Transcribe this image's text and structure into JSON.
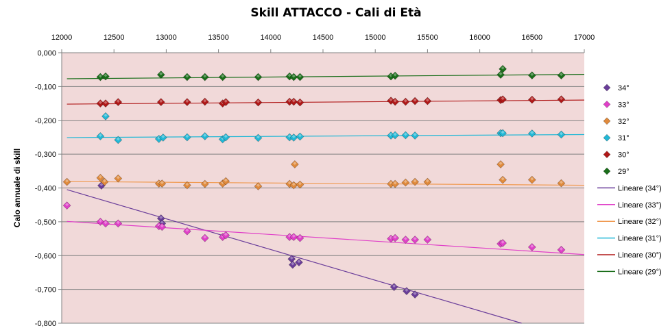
{
  "chart_data": {
    "type": "scatter",
    "title": "Skill ATTACCO - Cali di Età",
    "xlabel": "",
    "ylabel": "Calo annuale di skill",
    "x_axis_position": "top",
    "xlim": [
      12000,
      17000
    ],
    "ylim": [
      -0.8,
      0.0
    ],
    "x_ticks": [
      "12000",
      "12500",
      "13000",
      "13500",
      "14000",
      "14500",
      "15000",
      "15500",
      "16000",
      "16500",
      "17000"
    ],
    "y_ticks": [
      "0,000",
      "-0,100",
      "-0,200",
      "-0,300",
      "-0,400",
      "-0,500",
      "-0,600",
      "-0,700",
      "-0,800"
    ],
    "grid": "horizontal",
    "legend_position": "right",
    "plot_background": "#f1d9d9",
    "series": [
      {
        "name": "34°",
        "color": "#6a3d9a",
        "marker": "diamond",
        "points": [
          [
            12380,
            -0.393
          ],
          [
            12950,
            -0.49
          ],
          [
            12960,
            -0.505
          ],
          [
            14200,
            -0.61
          ],
          [
            14210,
            -0.627
          ],
          [
            14270,
            -0.62
          ],
          [
            15180,
            -0.693
          ],
          [
            15300,
            -0.705
          ],
          [
            15380,
            -0.715
          ]
        ]
      },
      {
        "name": "33°",
        "color": "#e040c8",
        "marker": "diamond",
        "points": [
          [
            12050,
            -0.452
          ],
          [
            12370,
            -0.5
          ],
          [
            12420,
            -0.505
          ],
          [
            12540,
            -0.505
          ],
          [
            12930,
            -0.513
          ],
          [
            12960,
            -0.515
          ],
          [
            13200,
            -0.528
          ],
          [
            13370,
            -0.548
          ],
          [
            13540,
            -0.545
          ],
          [
            13570,
            -0.54
          ],
          [
            14180,
            -0.545
          ],
          [
            14220,
            -0.545
          ],
          [
            14280,
            -0.548
          ],
          [
            15150,
            -0.55
          ],
          [
            15190,
            -0.548
          ],
          [
            15290,
            -0.553
          ],
          [
            15380,
            -0.553
          ],
          [
            15500,
            -0.553
          ],
          [
            16200,
            -0.565
          ],
          [
            16220,
            -0.563
          ],
          [
            16500,
            -0.575
          ],
          [
            16780,
            -0.583
          ]
        ]
      },
      {
        "name": "32°",
        "color": "#e08a3c",
        "marker": "diamond",
        "points": [
          [
            12050,
            -0.382
          ],
          [
            12370,
            -0.37
          ],
          [
            12410,
            -0.382
          ],
          [
            12540,
            -0.372
          ],
          [
            12930,
            -0.387
          ],
          [
            12960,
            -0.387
          ],
          [
            13200,
            -0.392
          ],
          [
            13370,
            -0.388
          ],
          [
            13540,
            -0.387
          ],
          [
            13570,
            -0.38
          ],
          [
            13880,
            -0.395
          ],
          [
            14180,
            -0.388
          ],
          [
            14220,
            -0.392
          ],
          [
            14230,
            -0.33
          ],
          [
            14280,
            -0.39
          ],
          [
            15150,
            -0.388
          ],
          [
            15190,
            -0.388
          ],
          [
            15290,
            -0.384
          ],
          [
            15380,
            -0.382
          ],
          [
            15500,
            -0.382
          ],
          [
            16200,
            -0.33
          ],
          [
            16220,
            -0.376
          ],
          [
            16500,
            -0.376
          ],
          [
            16780,
            -0.386
          ]
        ]
      },
      {
        "name": "31°",
        "color": "#22b8d6",
        "marker": "diamond",
        "points": [
          [
            12370,
            -0.247
          ],
          [
            12420,
            -0.188
          ],
          [
            12540,
            -0.258
          ],
          [
            12930,
            -0.255
          ],
          [
            12970,
            -0.251
          ],
          [
            13200,
            -0.25
          ],
          [
            13370,
            -0.247
          ],
          [
            13540,
            -0.256
          ],
          [
            13570,
            -0.25
          ],
          [
            13880,
            -0.252
          ],
          [
            14180,
            -0.25
          ],
          [
            14220,
            -0.251
          ],
          [
            14280,
            -0.248
          ],
          [
            15150,
            -0.245
          ],
          [
            15190,
            -0.244
          ],
          [
            15290,
            -0.244
          ],
          [
            15380,
            -0.245
          ],
          [
            16200,
            -0.238
          ],
          [
            16220,
            -0.238
          ],
          [
            16500,
            -0.239
          ],
          [
            16780,
            -0.242
          ]
        ]
      },
      {
        "name": "30°",
        "color": "#b01818",
        "marker": "diamond",
        "points": [
          [
            12370,
            -0.15
          ],
          [
            12420,
            -0.15
          ],
          [
            12540,
            -0.146
          ],
          [
            12950,
            -0.146
          ],
          [
            13200,
            -0.146
          ],
          [
            13370,
            -0.145
          ],
          [
            13540,
            -0.15
          ],
          [
            13570,
            -0.146
          ],
          [
            13880,
            -0.147
          ],
          [
            14180,
            -0.145
          ],
          [
            14220,
            -0.145
          ],
          [
            14280,
            -0.147
          ],
          [
            15150,
            -0.142
          ],
          [
            15190,
            -0.145
          ],
          [
            15290,
            -0.145
          ],
          [
            15380,
            -0.143
          ],
          [
            15500,
            -0.143
          ],
          [
            16200,
            -0.14
          ],
          [
            16220,
            -0.138
          ],
          [
            16500,
            -0.139
          ],
          [
            16780,
            -0.138
          ]
        ]
      },
      {
        "name": "29°",
        "color": "#1a6e1a",
        "marker": "diamond",
        "points": [
          [
            12370,
            -0.072
          ],
          [
            12420,
            -0.07
          ],
          [
            12950,
            -0.065
          ],
          [
            13200,
            -0.072
          ],
          [
            13370,
            -0.072
          ],
          [
            13540,
            -0.072
          ],
          [
            13880,
            -0.072
          ],
          [
            14180,
            -0.07
          ],
          [
            14220,
            -0.072
          ],
          [
            14280,
            -0.072
          ],
          [
            15150,
            -0.07
          ],
          [
            15190,
            -0.068
          ],
          [
            16200,
            -0.065
          ],
          [
            16220,
            -0.048
          ],
          [
            16500,
            -0.067
          ],
          [
            16780,
            -0.067
          ]
        ]
      }
    ],
    "trendlines": [
      {
        "name": "Lineare (34°)",
        "color": "#6a3d9a",
        "x": [
          12050,
          16400
        ],
        "y": [
          -0.405,
          -0.8
        ]
      },
      {
        "name": "Lineare (33°)",
        "color": "#e040c8",
        "x": [
          12050,
          17000
        ],
        "y": [
          -0.499,
          -0.597
        ]
      },
      {
        "name": "Lineare (32°)",
        "color": "#f09a50",
        "x": [
          12050,
          17000
        ],
        "y": [
          -0.381,
          -0.392
        ]
      },
      {
        "name": "Lineare (31°)",
        "color": "#22b8d6",
        "x": [
          12050,
          17000
        ],
        "y": [
          -0.251,
          -0.242
        ]
      },
      {
        "name": "Lineare (30°)",
        "color": "#b01818",
        "x": [
          12050,
          17000
        ],
        "y": [
          -0.152,
          -0.14
        ]
      },
      {
        "name": "Lineare (29°)",
        "color": "#1a6e1a",
        "x": [
          12050,
          17000
        ],
        "y": [
          -0.077,
          -0.064
        ]
      }
    ]
  }
}
